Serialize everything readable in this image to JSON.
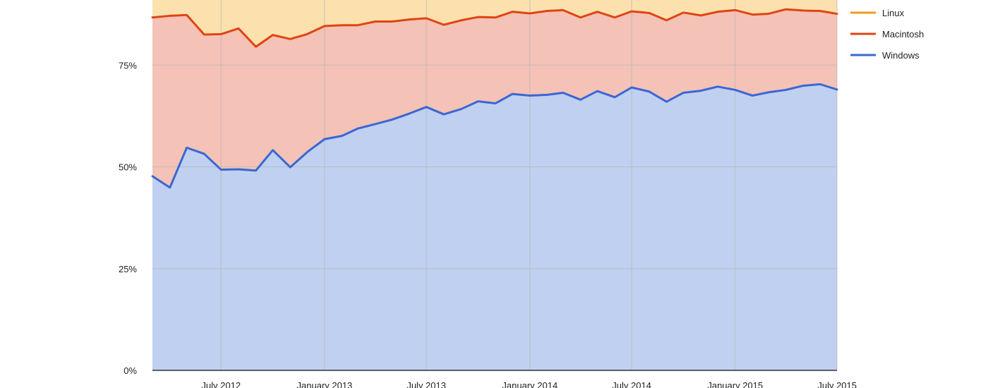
{
  "chart_data": {
    "type": "area",
    "stacked": true,
    "xaxis": {
      "ticks": [
        {
          "date": "2012-07-01",
          "label": "July 2012"
        },
        {
          "date": "2013-01-01",
          "label": "January 2013"
        },
        {
          "date": "2013-07-01",
          "label": "July 2013"
        },
        {
          "date": "2014-01-01",
          "label": "January 2014"
        },
        {
          "date": "2014-07-01",
          "label": "July 2014"
        },
        {
          "date": "2015-01-01",
          "label": "January 2015"
        },
        {
          "date": "2015-07-01",
          "label": "July 2015"
        }
      ],
      "range": [
        "2012-03-01",
        "2015-07-01"
      ]
    },
    "yaxis": {
      "ticks": [
        {
          "value": 0,
          "label": "0%"
        },
        {
          "value": 25,
          "label": "25%"
        },
        {
          "value": 50,
          "label": "50%"
        },
        {
          "value": 75,
          "label": "75%"
        }
      ],
      "ylim": [
        0,
        100
      ]
    },
    "grid": true,
    "legend_position": "top-right",
    "x": [
      "2012-03-01",
      "2012-04-01",
      "2012-05-01",
      "2012-06-01",
      "2012-07-01",
      "2012-08-01",
      "2012-09-01",
      "2012-10-01",
      "2012-11-01",
      "2012-12-01",
      "2013-01-01",
      "2013-02-01",
      "2013-03-01",
      "2013-04-01",
      "2013-05-01",
      "2013-06-01",
      "2013-07-01",
      "2013-08-01",
      "2013-09-01",
      "2013-10-01",
      "2013-11-01",
      "2013-12-01",
      "2014-01-01",
      "2014-02-01",
      "2014-03-01",
      "2014-04-01",
      "2014-05-01",
      "2014-06-01",
      "2014-07-01",
      "2014-08-01",
      "2014-09-01",
      "2014-10-01",
      "2014-11-01",
      "2014-12-01",
      "2015-01-01",
      "2015-02-01",
      "2015-03-01",
      "2015-04-01",
      "2015-05-01",
      "2015-06-01",
      "2015-07-01"
    ],
    "series": [
      {
        "name": "Windows",
        "line_color": "#3a67d4",
        "fill_color": "#c0d0f0",
        "values": [
          47.7,
          44.9,
          54.7,
          53.2,
          49.3,
          49.4,
          49.1,
          54.1,
          49.9,
          53.6,
          56.8,
          57.6,
          59.4,
          60.5,
          61.6,
          63.1,
          64.7,
          62.9,
          64.2,
          66.1,
          65.6,
          67.9,
          67.5,
          67.7,
          68.2,
          66.5,
          68.6,
          67.1,
          69.5,
          68.5,
          66.0,
          68.2,
          68.7,
          69.7,
          68.9,
          67.5,
          68.3,
          68.9,
          69.9,
          70.3,
          69.0
        ]
      },
      {
        "name": "Macintosh",
        "line_color": "#df4513",
        "fill_color": "#f4c2b6",
        "values": [
          86.7,
          87.1,
          87.3,
          82.5,
          82.6,
          84.0,
          79.5,
          82.4,
          81.4,
          82.6,
          84.6,
          84.8,
          84.8,
          85.7,
          85.7,
          86.2,
          86.5,
          84.9,
          86.0,
          86.8,
          86.7,
          88.1,
          87.7,
          88.3,
          88.5,
          86.7,
          88.1,
          86.7,
          88.2,
          87.8,
          86.0,
          87.9,
          87.2,
          88.1,
          88.5,
          87.4,
          87.6,
          88.7,
          88.4,
          88.3,
          87.6
        ]
      },
      {
        "name": "Linux",
        "line_color": "#f09a1e",
        "fill_color": "#fce1ae",
        "values": [
          100,
          100,
          100,
          100,
          100,
          100,
          100,
          100,
          100,
          100,
          100,
          100,
          100,
          100,
          100,
          100,
          100,
          100,
          100,
          100,
          100,
          100,
          100,
          100,
          100,
          100,
          100,
          100,
          100,
          100,
          100,
          100,
          100,
          100,
          100,
          100,
          100,
          100,
          100,
          100,
          100
        ]
      }
    ],
    "legend": [
      {
        "name": "Linux",
        "color": "#f09a1e"
      },
      {
        "name": "Macintosh",
        "color": "#df4513"
      },
      {
        "name": "Windows",
        "color": "#3a67d4"
      }
    ],
    "colors": {
      "grid": "#b8b8b8",
      "axis": "#333333",
      "text": "#222222"
    }
  }
}
